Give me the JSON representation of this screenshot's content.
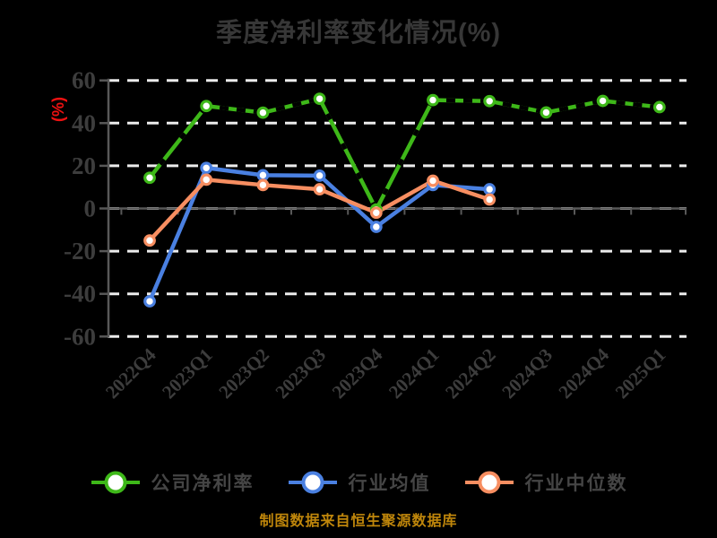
{
  "title": "季度净利率变化情况(%)",
  "footer": {
    "text": "制图数据来自恒生聚源数据库"
  },
  "colors": {
    "background": "#000000",
    "title_text": "#373737",
    "axis_text": "#3d3d3d",
    "axis_line": "#585858",
    "gridline": "#ececec",
    "ylabel_red": "#ee1111",
    "legend_text": "#454545",
    "marker_fill": "#ffffff",
    "overlay_dash": "#000000"
  },
  "chart_data": {
    "type": "line",
    "title": "季度净利率变化情况(%)",
    "ylabel": "(%)",
    "categories": [
      "2022Q4",
      "2023Q1",
      "2023Q2",
      "2023Q3",
      "2023Q4",
      "2024Q1",
      "2024Q2",
      "2024Q3",
      "2024Q4",
      "2025Q1"
    ],
    "series": [
      {
        "name": "公司净利率",
        "color": "#3eb819",
        "values": [
          14.4,
          48.0,
          44.9,
          51.4,
          -0.5,
          50.8,
          50.3,
          45.0,
          50.4,
          47.5
        ],
        "overlay_black_dashed": true
      },
      {
        "name": "行业均值",
        "color": "#4a80e1",
        "values": [
          -43.5,
          19.0,
          15.6,
          15.4,
          -8.6,
          11.0,
          9.0,
          null,
          null,
          null
        ],
        "overlay_black_dashed": false
      },
      {
        "name": "行业中位数",
        "color": "#f78e61",
        "values": [
          -15.0,
          13.5,
          11.0,
          9.0,
          -2.0,
          13.0,
          4.2,
          null,
          null,
          null
        ],
        "overlay_black_dashed": false
      }
    ],
    "ylim": [
      -60,
      60
    ],
    "yticks": [
      60,
      40,
      20,
      0,
      -20,
      -40,
      -60
    ],
    "grid": "horizontal-dashed",
    "x_axis_at_value": 0,
    "legend_position": "bottom",
    "marker": "circle-white-fill"
  }
}
